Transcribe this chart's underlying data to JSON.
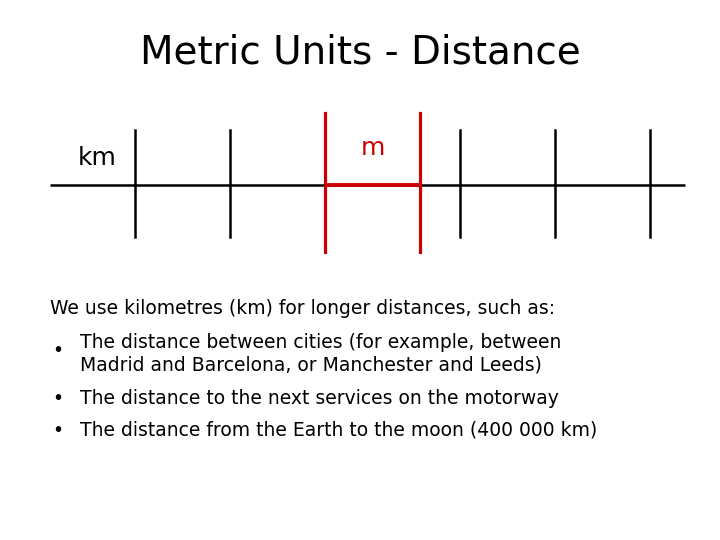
{
  "title": "Metric Units - Distance",
  "title_fontsize": 28,
  "title_color": "#000000",
  "background_color": "#ffffff",
  "km_label": "km",
  "m_label": "m",
  "m_label_color": "#cc0000",
  "ruler_color": "#000000",
  "ruler_lw": 1.8,
  "red_color": "#cc0000",
  "text_intro": "We use kilometres (km) for longer distances, such as:",
  "bullet_line1a": "The distance between cities (for example, between",
  "bullet_line1b": "Madrid and Barcelona, or Manchester and Leeds)",
  "bullet_line2": "The distance to the next services on the motorway",
  "bullet_line3": "The distance from the Earth to the moon (400 000 km)",
  "text_fontsize": 13.5,
  "label_fontsize": 18,
  "bullet_symbol": "•"
}
